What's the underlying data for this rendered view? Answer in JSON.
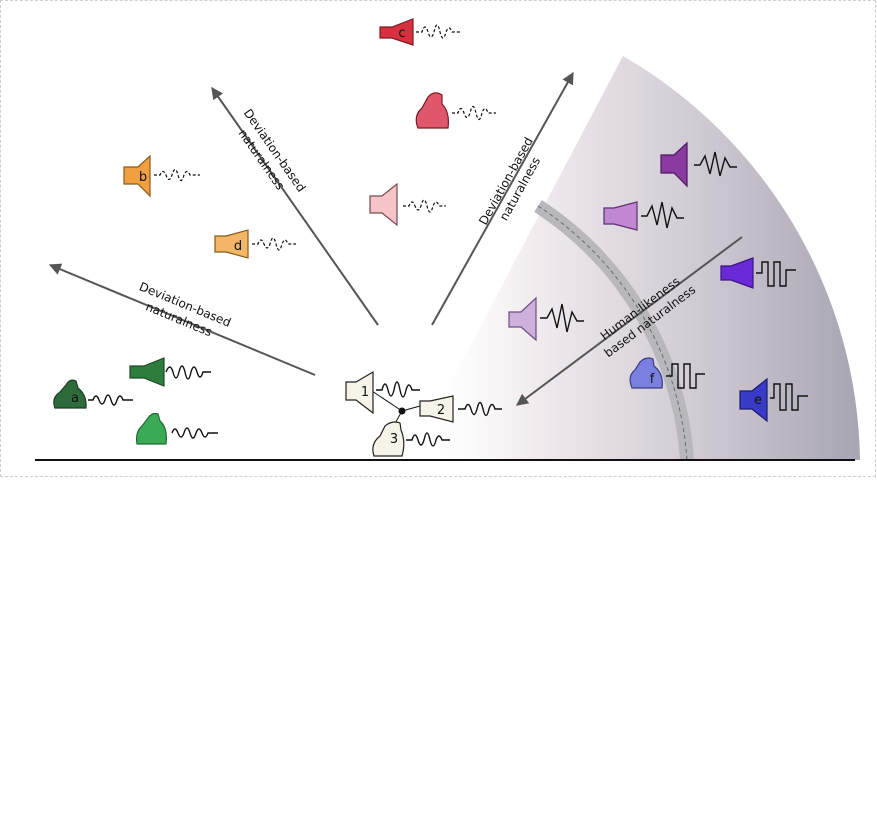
{
  "arrow_labels": {
    "left_line1": "Deviation-based",
    "left_line2": "naturalness",
    "upper_left_line1": "Deviation-based",
    "upper_left_line2": "naturalness",
    "upper_right_line1": "Deviation-based",
    "upper_right_line2": "naturalness",
    "human_line1": "Human-likeness",
    "human_line2": "based naturalness"
  },
  "speaker_labels": {
    "a": "a",
    "b": "b",
    "c": "c",
    "d": "d",
    "e": "e",
    "f": "f",
    "center1": "1",
    "center2": "2",
    "center3": "3"
  },
  "colors": {
    "green_dark": "#2e6b3a",
    "green_mid": "#2f7d3c",
    "green_light": "#3aaa55",
    "orange": "#f0a040",
    "orange_light": "#f3b566",
    "red": "#d8303e",
    "red_mid": "#e0566a",
    "pink": "#f4c4c8",
    "purple_dark": "#8a3aa0",
    "purple_light": "#c088d0",
    "lavender": "#cdb0dc",
    "violet": "#6a2ad8",
    "periwinkle": "#7a80e0",
    "blue": "#3a3ac8",
    "center_fill": "#f6f3e8",
    "arrow": "#555555"
  },
  "icons": [
    "speaker-icon",
    "waveform-icon",
    "arrow-icon"
  ]
}
